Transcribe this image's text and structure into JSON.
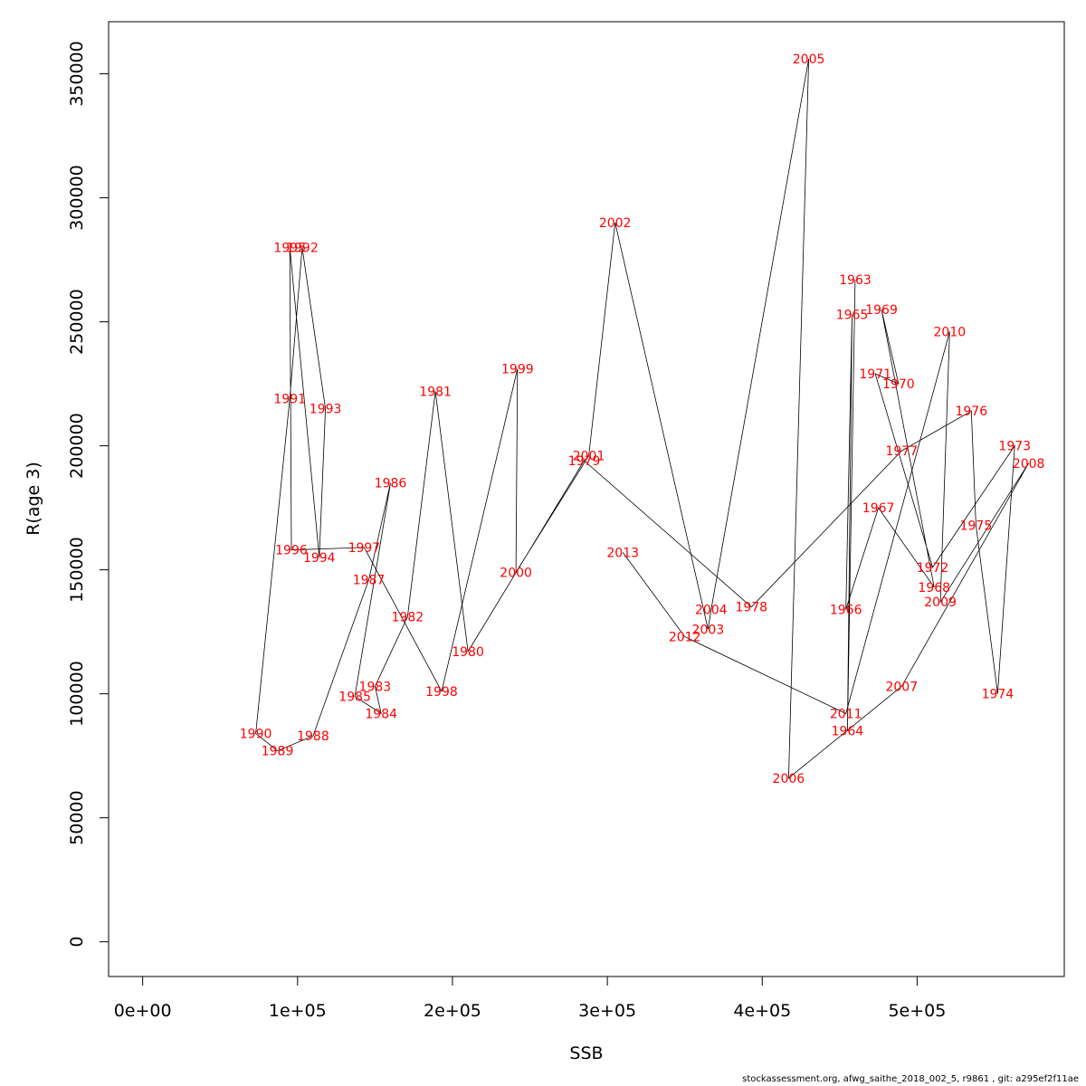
{
  "chart_data": {
    "type": "scatter",
    "xlabel": "SSB",
    "ylabel": "R(age 3)",
    "xlim": [
      -22000,
      595000
    ],
    "ylim": [
      -14000,
      371000
    ],
    "xticks": [
      0,
      100000,
      200000,
      300000,
      400000,
      500000
    ],
    "xtick_labels": [
      "0e+00",
      "1e+05",
      "2e+05",
      "3e+05",
      "4e+05",
      "5e+05"
    ],
    "yticks": [
      0,
      50000,
      100000,
      150000,
      200000,
      250000,
      300000,
      350000
    ],
    "ytick_labels": [
      "0",
      "50000",
      "100000",
      "150000",
      "200000",
      "250000",
      "300000",
      "350000"
    ],
    "colors": {
      "line": "#000000",
      "labels": "#ff0000"
    },
    "points": [
      {
        "year": "1963",
        "x": 460000,
        "y": 267000
      },
      {
        "year": "1964",
        "x": 455000,
        "y": 85000
      },
      {
        "year": "1965",
        "x": 458000,
        "y": 253000
      },
      {
        "year": "1966",
        "x": 454000,
        "y": 134000
      },
      {
        "year": "1967",
        "x": 475000,
        "y": 175000
      },
      {
        "year": "1968",
        "x": 511000,
        "y": 143000
      },
      {
        "year": "1969",
        "x": 477000,
        "y": 255000
      },
      {
        "year": "1970",
        "x": 488000,
        "y": 225000
      },
      {
        "year": "1971",
        "x": 473000,
        "y": 229000
      },
      {
        "year": "1972",
        "x": 510000,
        "y": 151000
      },
      {
        "year": "1973",
        "x": 563000,
        "y": 200000
      },
      {
        "year": "1974",
        "x": 552000,
        "y": 100000
      },
      {
        "year": "1975",
        "x": 538000,
        "y": 168000
      },
      {
        "year": "1976",
        "x": 535000,
        "y": 214000
      },
      {
        "year": "1977",
        "x": 490000,
        "y": 198000
      },
      {
        "year": "1978",
        "x": 393000,
        "y": 135000
      },
      {
        "year": "1979",
        "x": 285000,
        "y": 194000
      },
      {
        "year": "1980",
        "x": 210000,
        "y": 117000
      },
      {
        "year": "1981",
        "x": 189000,
        "y": 222000
      },
      {
        "year": "1982",
        "x": 171000,
        "y": 131000
      },
      {
        "year": "1983",
        "x": 150000,
        "y": 103000
      },
      {
        "year": "1984",
        "x": 154000,
        "y": 92000
      },
      {
        "year": "1985",
        "x": 137000,
        "y": 99000
      },
      {
        "year": "1986",
        "x": 160000,
        "y": 185000
      },
      {
        "year": "1987",
        "x": 146000,
        "y": 146000
      },
      {
        "year": "1988",
        "x": 110000,
        "y": 83000
      },
      {
        "year": "1989",
        "x": 87000,
        "y": 77000
      },
      {
        "year": "1990",
        "x": 73000,
        "y": 84000
      },
      {
        "year": "1991",
        "x": 95000,
        "y": 219000
      },
      {
        "year": "1992",
        "x": 103000,
        "y": 280000
      },
      {
        "year": "1993",
        "x": 118000,
        "y": 215000
      },
      {
        "year": "1994",
        "x": 114000,
        "y": 155000
      },
      {
        "year": "1995",
        "x": 95000,
        "y": 280000
      },
      {
        "year": "1996",
        "x": 96000,
        "y": 158000
      },
      {
        "year": "1997",
        "x": 143000,
        "y": 159000
      },
      {
        "year": "1998",
        "x": 193000,
        "y": 101000
      },
      {
        "year": "1999",
        "x": 242000,
        "y": 231000
      },
      {
        "year": "2000",
        "x": 241000,
        "y": 149000
      },
      {
        "year": "2001",
        "x": 288000,
        "y": 196000
      },
      {
        "year": "2002",
        "x": 305000,
        "y": 290000
      },
      {
        "year": "2003",
        "x": 365000,
        "y": 126000
      },
      {
        "year": "2004",
        "x": 367000,
        "y": 134000
      },
      {
        "year": "2005",
        "x": 430000,
        "y": 356000
      },
      {
        "year": "2006",
        "x": 417000,
        "y": 66000
      },
      {
        "year": "2007",
        "x": 490000,
        "y": 103000
      },
      {
        "year": "2008",
        "x": 572000,
        "y": 193000
      },
      {
        "year": "2009",
        "x": 515000,
        "y": 137000
      },
      {
        "year": "2010",
        "x": 521000,
        "y": 246000
      },
      {
        "year": "2011",
        "x": 454000,
        "y": 92000
      },
      {
        "year": "2012",
        "x": 350000,
        "y": 123000
      },
      {
        "year": "2013",
        "x": 310000,
        "y": 157000
      }
    ]
  },
  "footer": "stockassessment.org, afwg_saithe_2018_002_5, r9861 , git: a295ef2f11ae"
}
